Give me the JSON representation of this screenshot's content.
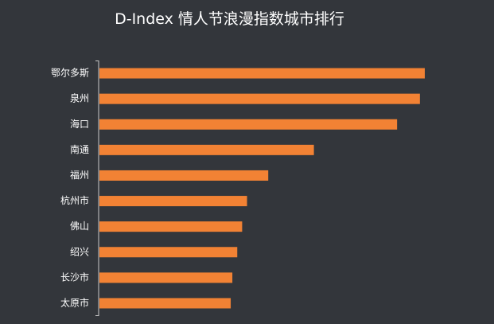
{
  "chart_data": {
    "type": "bar",
    "orientation": "horizontal",
    "title": "D-Index 情人节浪漫指数城市排行",
    "categories": [
      "鄂尔多斯",
      "泉州",
      "海口",
      "南通",
      "福州",
      "杭州市",
      "佛山",
      "绍兴",
      "长沙市",
      "太原市"
    ],
    "values": [
      100,
      98.5,
      91.5,
      66,
      52,
      45.5,
      44,
      42.5,
      41,
      40.5
    ],
    "xlabel": "",
    "ylabel": "",
    "xlim": [
      0,
      100
    ],
    "grid": false,
    "legend": "none",
    "bar_color": "#f28234",
    "text_color": "#ffffff",
    "axis_color": "#c8c8c8",
    "background": "#33363b"
  }
}
